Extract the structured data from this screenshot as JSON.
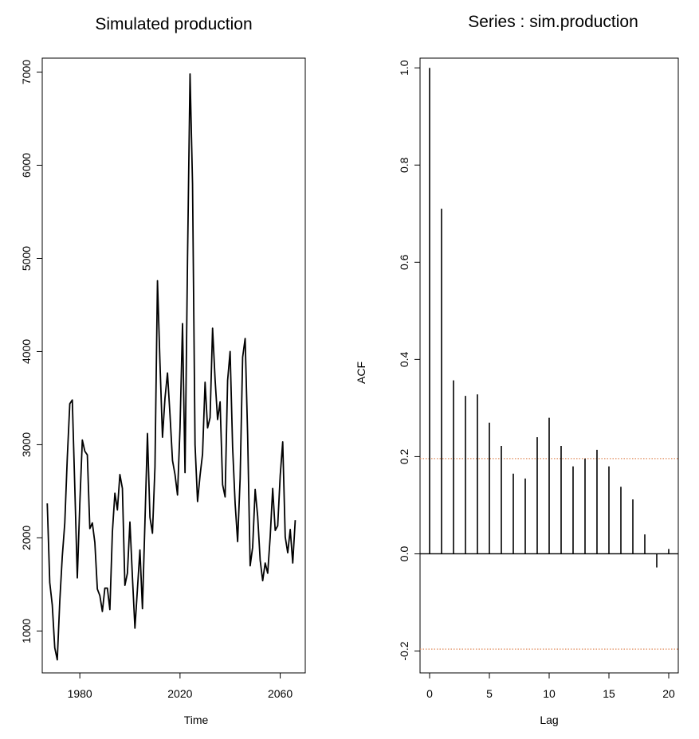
{
  "colors": {
    "line": "#000000",
    "ci_line": "#e08a5a",
    "background": "#ffffff"
  },
  "chart_data": [
    {
      "type": "line",
      "title": "Simulated production",
      "xlabel": "Time",
      "ylabel": "",
      "xlim": [
        1965,
        2070
      ],
      "ylim": [
        550,
        7150
      ],
      "xticks": [
        1980,
        2020,
        2060
      ],
      "yticks": [
        1000,
        2000,
        3000,
        4000,
        5000,
        6000,
        7000
      ],
      "x_start": 1967,
      "values": [
        2370,
        1520,
        1280,
        820,
        690,
        1320,
        1800,
        2160,
        2860,
        3440,
        3480,
        2540,
        1570,
        2370,
        3050,
        2930,
        2890,
        2100,
        2160,
        1950,
        1450,
        1380,
        1210,
        1460,
        1460,
        1230,
        2060,
        2480,
        2300,
        2680,
        2530,
        1490,
        1620,
        2170,
        1580,
        1030,
        1450,
        1870,
        1240,
        2170,
        3120,
        2220,
        2050,
        2760,
        4760,
        3880,
        3080,
        3500,
        3770,
        3320,
        2830,
        2680,
        2460,
        3180,
        4300,
        2700,
        5000,
        6980,
        5800,
        3000,
        2390,
        2670,
        2900,
        3670,
        3180,
        3290,
        4250,
        3700,
        3270,
        3460,
        2570,
        2440,
        3690,
        4000,
        2970,
        2370,
        1960,
        2640,
        3940,
        4140,
        3100,
        1700,
        1900,
        2520,
        2230,
        1760,
        1540,
        1730,
        1620,
        2010,
        2530,
        2080,
        2130,
        2670,
        3030,
        2010,
        1840,
        2090,
        1730,
        2190
      ]
    },
    {
      "type": "bar",
      "title": "Series : sim.production",
      "xlabel": "Lag",
      "ylabel": "ACF",
      "xlim": [
        -0.8,
        20.8
      ],
      "ylim": [
        -0.245,
        1.02
      ],
      "xticks": [
        0,
        5,
        10,
        15,
        20
      ],
      "yticks": [
        "-0.2",
        "0.0",
        "0.2",
        "0.4",
        "0.6",
        "0.8",
        "1.0"
      ],
      "lags": [
        0,
        1,
        2,
        3,
        4,
        5,
        6,
        7,
        8,
        9,
        10,
        11,
        12,
        13,
        14,
        15,
        16,
        17,
        18,
        19,
        20
      ],
      "values": [
        1.0,
        0.71,
        0.357,
        0.325,
        0.328,
        0.27,
        0.222,
        0.165,
        0.155,
        0.24,
        0.28,
        0.222,
        0.18,
        0.196,
        0.214,
        0.18,
        0.138,
        0.112,
        0.04,
        -0.028,
        0.01
      ],
      "confidence_bounds": [
        0.196,
        -0.196
      ]
    }
  ]
}
